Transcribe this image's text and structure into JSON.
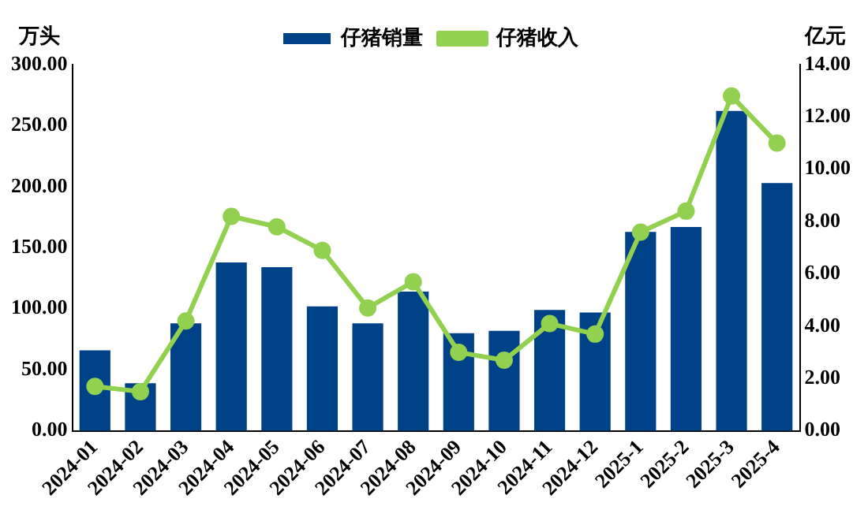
{
  "chart_data": {
    "type": "bar",
    "ylabel": "万头",
    "y2label": "亿元",
    "categories": [
      "2024-01",
      "2024-02",
      "2024-03",
      "2024-04",
      "2024-05",
      "2024-06",
      "2024-07",
      "2024-08",
      "2024-09",
      "2024-10",
      "2024-11",
      "2024-12",
      "2025-1",
      "2025-2",
      "2025-3",
      "2025-4"
    ],
    "series": [
      {
        "name": "仔猪销量",
        "color": "#004287",
        "values": [
          66,
          39,
          88,
          138,
          134,
          102,
          88,
          114,
          80,
          82,
          99,
          97,
          163,
          167,
          262,
          203
        ]
      },
      {
        "name": "仔猪收入",
        "type": "line",
        "axis": "y2",
        "color": "#92d050",
        "values": [
          1.7,
          1.5,
          4.2,
          8.2,
          7.8,
          6.9,
          4.7,
          5.7,
          3.0,
          2.7,
          4.1,
          3.7,
          7.6,
          8.4,
          12.8,
          11.0
        ]
      }
    ],
    "ylim": [
      0,
      300
    ],
    "yticks": [
      {
        "value": 0,
        "label": "0.00"
      },
      {
        "value": 50,
        "label": "50.00"
      },
      {
        "value": 100,
        "label": "100.00"
      },
      {
        "value": 150,
        "label": "150.00"
      },
      {
        "value": 200,
        "label": "200.00"
      },
      {
        "value": 250,
        "label": "250.00"
      },
      {
        "value": 300,
        "label": "300.00"
      }
    ],
    "y2lim": [
      0,
      14
    ],
    "y2ticks": [
      {
        "value": 0,
        "label": "0.00"
      },
      {
        "value": 2,
        "label": "2.00"
      },
      {
        "value": 4,
        "label": "4.00"
      },
      {
        "value": 6,
        "label": "6.00"
      },
      {
        "value": 8,
        "label": "8.00"
      },
      {
        "value": 10,
        "label": "10.00"
      },
      {
        "value": 12,
        "label": "12.00"
      },
      {
        "value": 14,
        "label": "14.00"
      }
    ],
    "grid": false,
    "legend": "top",
    "marker": "circle",
    "line_style": "solid"
  }
}
